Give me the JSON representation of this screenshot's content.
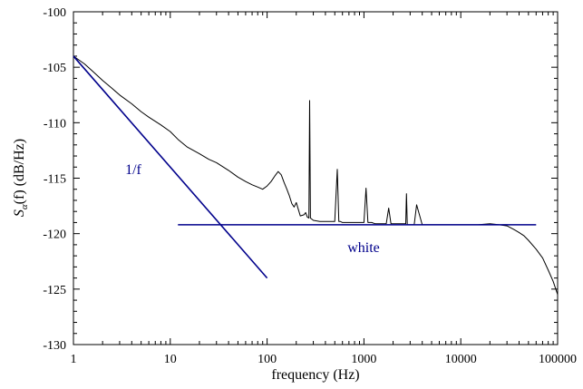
{
  "chart_data": {
    "type": "line",
    "title": "",
    "xlabel": "frequency (Hz)",
    "ylabel_prefix": "S",
    "ylabel_subscript": "α",
    "ylabel_suffix": "(f)  (dB/Hz)",
    "x_scale": "log",
    "xlim": [
      1,
      100000
    ],
    "ylim": [
      -130,
      -100
    ],
    "x_ticks": [
      1,
      10,
      100,
      1000,
      10000,
      100000
    ],
    "x_tick_labels": [
      "1",
      "10",
      "100",
      "1000",
      "10000",
      "100000"
    ],
    "y_ticks": [
      -130,
      -125,
      -120,
      -115,
      -110,
      -105,
      -100
    ],
    "y_tick_labels": [
      "-130",
      "-125",
      "-120",
      "-115",
      "-110",
      "-105",
      "-100"
    ],
    "grid": false,
    "colors": {
      "spectrum": "#000000",
      "fits": "#00008b"
    },
    "series": [
      {
        "name": "",
        "x": [
          1,
          1.3,
          1.6,
          2,
          2.5,
          3,
          4,
          5,
          6,
          8,
          10,
          12,
          15,
          20,
          25,
          30,
          40,
          50,
          60,
          70,
          80,
          90,
          100,
          110,
          120,
          130,
          140,
          150,
          160,
          170,
          180,
          190,
          200,
          210,
          220,
          240,
          250,
          260,
          270,
          275,
          280,
          300,
          350,
          400,
          500,
          530,
          550,
          570,
          600,
          700,
          800,
          900,
          1000,
          1050,
          1100,
          1200,
          1300,
          1500,
          1700,
          1800,
          1900,
          2000,
          2200,
          2500,
          2700,
          2750,
          2800,
          3000,
          3300,
          3500,
          4000,
          4500,
          5000,
          5500,
          6000,
          7000,
          8000,
          9000,
          10000,
          12000,
          15000,
          20000,
          25000,
          30000,
          35000,
          40000,
          45000,
          50000,
          60000,
          70000,
          80000,
          90000,
          100000
        ],
        "y": [
          -104,
          -104.7,
          -105.4,
          -106.2,
          -106.9,
          -107.5,
          -108.3,
          -109,
          -109.5,
          -110.2,
          -110.8,
          -111.5,
          -112.2,
          -112.8,
          -113.3,
          -113.6,
          -114.3,
          -114.9,
          -115.3,
          -115.6,
          -115.8,
          -116,
          -115.7,
          -115.3,
          -114.8,
          -114.4,
          -114.7,
          -115.4,
          -116,
          -116.6,
          -117.3,
          -117.6,
          -117.2,
          -117.8,
          -118.4,
          -118.3,
          -118.1,
          -118.5,
          -118.6,
          -108,
          -118.6,
          -118.8,
          -118.9,
          -118.9,
          -118.9,
          -114.2,
          -118.9,
          -118.9,
          -119,
          -119,
          -119,
          -119,
          -119,
          -115.9,
          -119,
          -119,
          -119.1,
          -119.1,
          -119.1,
          -117.7,
          -119.1,
          -119.1,
          -119.1,
          -119.1,
          -119.1,
          -116.4,
          -119.2,
          -119.2,
          -119.2,
          -117.4,
          -119.2,
          -119.2,
          -119.2,
          -119.2,
          -119.2,
          -119.2,
          -119.2,
          -119.2,
          -119.2,
          -119.2,
          -119.2,
          -119.1,
          -119.2,
          -119.3,
          -119.6,
          -119.9,
          -120.2,
          -120.6,
          -121.4,
          -122.2,
          -123.3,
          -124.3,
          -125.5
        ]
      }
    ],
    "fits": [
      {
        "label": "1/f",
        "x": [
          1,
          100
        ],
        "y": [
          -104,
          -124
        ]
      },
      {
        "label": "white",
        "x": [
          12,
          60000
        ],
        "y": [
          -119.2,
          -119.2
        ]
      }
    ]
  }
}
